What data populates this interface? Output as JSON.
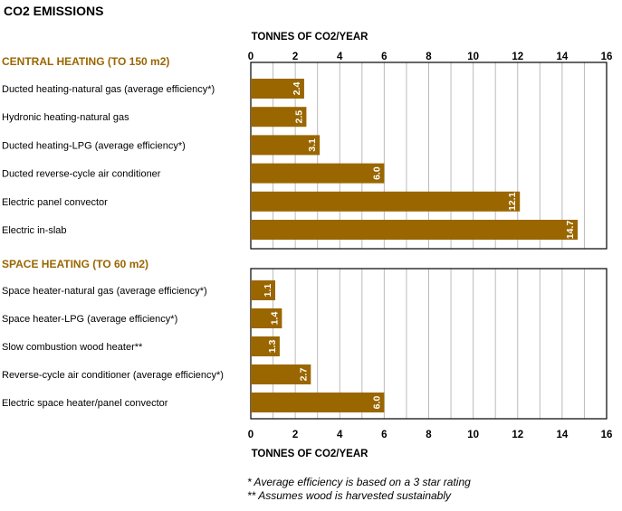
{
  "title": "CO2 EMISSIONS",
  "axis_label": "TONNES OF CO2/YEAR",
  "colors": {
    "bar": "#9a6600",
    "section": "#9a6600",
    "grid": "#bbbbbb",
    "frame": "#000000",
    "value_text": "#ffffff"
  },
  "footnotes": [
    "* Average efficiency is based on a 3 star rating",
    "** Assumes wood is harvested sustainably"
  ],
  "chart_data": [
    {
      "type": "bar",
      "orientation": "horizontal",
      "title": "CENTRAL HEATING (TO 150 m2)",
      "xlabel": "TONNES OF CO2/YEAR",
      "xlim": [
        0,
        16
      ],
      "xticks": [
        0,
        2,
        4,
        6,
        8,
        10,
        12,
        14,
        16
      ],
      "grid": true,
      "categories": [
        "Ducted heating-natural gas (average efficiency*)",
        "Hydronic heating-natural gas",
        "Ducted heating-LPG (average efficiency*)",
        "Ducted reverse-cycle air conditioner",
        "Electric panel convector",
        "Electric in-slab"
      ],
      "values": [
        2.4,
        2.5,
        3.1,
        6.0,
        12.1,
        14.7
      ],
      "labels": [
        "2.4",
        "2.5",
        "3.1",
        "6.0",
        "12.1",
        "14.7"
      ]
    },
    {
      "type": "bar",
      "orientation": "horizontal",
      "title": "SPACE HEATING (TO 60 m2)",
      "xlabel": "TONNES OF CO2/YEAR",
      "xlim": [
        0,
        16
      ],
      "xticks": [
        0,
        2,
        4,
        6,
        8,
        10,
        12,
        14,
        16
      ],
      "grid": true,
      "categories": [
        "Space heater-natural gas (average efficiency*)",
        "Space heater-LPG (average efficiency*)",
        "Slow combustion wood heater**",
        "Reverse-cycle air conditioner (average efficiency*)",
        "Electric space heater/panel convector"
      ],
      "values": [
        1.1,
        1.4,
        1.3,
        2.7,
        6.0
      ],
      "labels": [
        "1.1",
        "1.4",
        "1.3",
        "2.7",
        "6.0"
      ]
    }
  ]
}
